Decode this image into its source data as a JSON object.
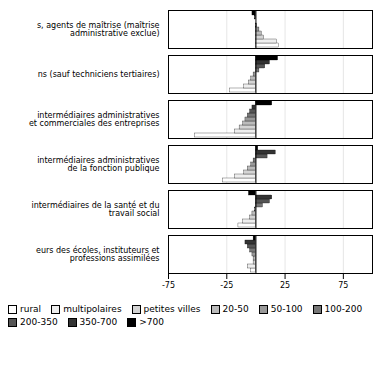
{
  "chart_data": {
    "type": "bar",
    "orientation": "horizontal",
    "categories": [
      "s, agents de maîtrise (maîtrise\nadministrative exclue)",
      "ns (sauf techniciens tertiaires)",
      "intermédiaires administratives\net commerciales des entreprises",
      "intermédiaires administratives\nde la fonction publique",
      "intermédiaires de la santé et du\n     travail social",
      "eurs des écoles, instituteurs et\n   professions assimilées"
    ],
    "series": [
      {
        "name": "rural",
        "color": "#ffffff",
        "values": [
          20,
          -22,
          -52,
          -28,
          -15,
          -4
        ]
      },
      {
        "name": "multipolaires",
        "color": "#eeeeee",
        "values": [
          18,
          -10,
          -18,
          -18,
          -11,
          -7
        ]
      },
      {
        "name": "petites villes",
        "color": "#d4d4d4",
        "values": [
          7,
          -6,
          -14,
          -10,
          -5,
          -2
        ]
      },
      {
        "name": "20-50",
        "color": "#bbbbbb",
        "values": [
          5,
          -4,
          -11,
          -7,
          -3,
          -2
        ]
      },
      {
        "name": "50-100",
        "color": "#999999",
        "values": [
          3,
          -2,
          -9,
          -4,
          -1,
          -3
        ]
      },
      {
        "name": "100-200",
        "color": "#777777",
        "values": [
          1,
          3,
          -7,
          -2,
          6,
          -5
        ]
      },
      {
        "name": "200-350",
        "color": "#555555",
        "values": [
          0,
          8,
          -5,
          10,
          12,
          -7
        ]
      },
      {
        "name": "350-700",
        "color": "#333333",
        "values": [
          -1,
          12,
          -3,
          17,
          14,
          -9
        ]
      },
      {
        "name": ">700",
        "color": "#000000",
        "values": [
          -3,
          19,
          14,
          2,
          -6,
          -2
        ]
      }
    ],
    "xlim": [
      -75,
      100
    ],
    "xticks": [
      -75,
      -25,
      25,
      75
    ],
    "grid": true,
    "legend": "bottom"
  }
}
